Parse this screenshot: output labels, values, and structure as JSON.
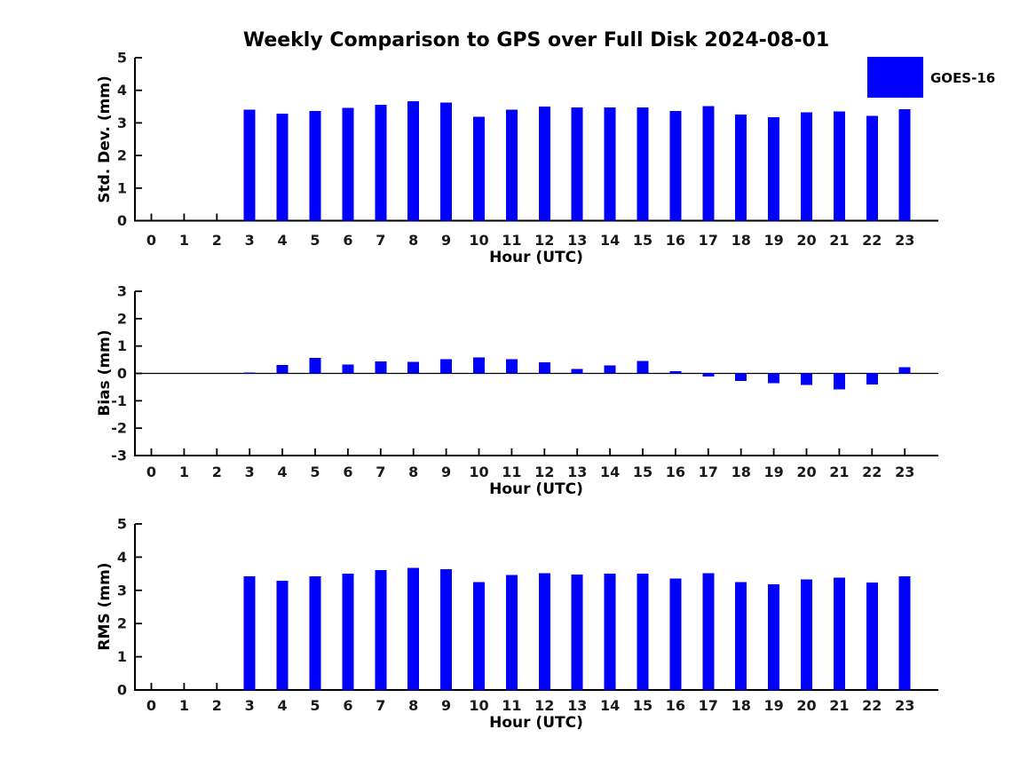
{
  "title": "Weekly Comparison to GPS over Full Disk 2024-08-01",
  "legend": {
    "label": "GOES-16",
    "color": "#0000ff",
    "position": "upper-right"
  },
  "colors": {
    "bar": "#0000ff",
    "axis": "#000000",
    "background": "#ffffff"
  },
  "chart_data": [
    {
      "type": "bar",
      "name": "std-dev",
      "ylabel": "Std. Dev. (mm)",
      "xlabel": "Hour (UTC)",
      "categories": [
        0,
        1,
        2,
        3,
        4,
        5,
        6,
        7,
        8,
        9,
        10,
        11,
        12,
        13,
        14,
        15,
        16,
        17,
        18,
        19,
        20,
        21,
        22,
        23
      ],
      "values": [
        null,
        null,
        null,
        3.41,
        3.29,
        3.36,
        3.46,
        3.56,
        3.66,
        3.62,
        3.19,
        3.41,
        3.5,
        3.47,
        3.47,
        3.47,
        3.37,
        3.52,
        3.25,
        3.18,
        3.32,
        3.35,
        3.21,
        3.42
      ],
      "ylim": [
        0,
        5
      ],
      "yticks": [
        0,
        1,
        2,
        3,
        4,
        5
      ],
      "grid": false,
      "legend_entry": "GOES-16"
    },
    {
      "type": "bar",
      "name": "bias",
      "ylabel": "Bias (mm)",
      "xlabel": "Hour (UTC)",
      "categories": [
        0,
        1,
        2,
        3,
        4,
        5,
        6,
        7,
        8,
        9,
        10,
        11,
        12,
        13,
        14,
        15,
        16,
        17,
        18,
        19,
        20,
        21,
        22,
        23
      ],
      "values": [
        null,
        null,
        null,
        0.03,
        0.31,
        0.56,
        0.32,
        0.44,
        0.42,
        0.52,
        0.58,
        0.52,
        0.41,
        0.17,
        0.29,
        0.46,
        0.08,
        -0.11,
        -0.28,
        -0.36,
        -0.42,
        -0.58,
        -0.4,
        0.22
      ],
      "ylim": [
        -3,
        3
      ],
      "yticks": [
        -3,
        -2,
        -1,
        0,
        1,
        2,
        3
      ],
      "zero_line": true,
      "grid": false,
      "legend_entry": "GOES-16"
    },
    {
      "type": "bar",
      "name": "rms",
      "ylabel": "RMS (mm)",
      "xlabel": "Hour (UTC)",
      "categories": [
        0,
        1,
        2,
        3,
        4,
        5,
        6,
        7,
        8,
        9,
        10,
        11,
        12,
        13,
        14,
        15,
        16,
        17,
        18,
        19,
        20,
        21,
        22,
        23
      ],
      "values": [
        null,
        null,
        null,
        3.42,
        3.29,
        3.42,
        3.5,
        3.61,
        3.67,
        3.64,
        3.25,
        3.46,
        3.52,
        3.47,
        3.5,
        3.5,
        3.36,
        3.52,
        3.25,
        3.18,
        3.33,
        3.38,
        3.23,
        3.42
      ],
      "ylim": [
        0,
        5
      ],
      "yticks": [
        0,
        1,
        2,
        3,
        4,
        5
      ],
      "grid": false,
      "legend_entry": "GOES-16"
    }
  ]
}
